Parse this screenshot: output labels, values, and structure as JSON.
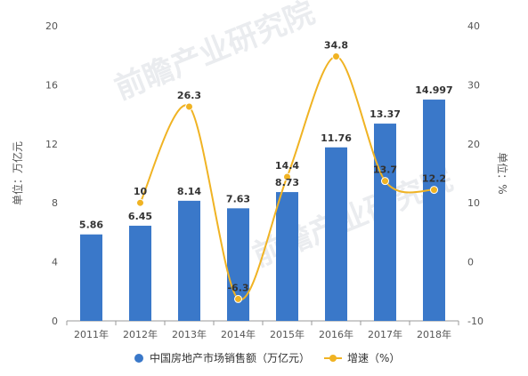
{
  "chart_data": {
    "type": "bar",
    "categories": [
      "2011年",
      "2012年",
      "2013年",
      "2014年",
      "2015年",
      "2016年",
      "2017年",
      "2018年"
    ],
    "series": [
      {
        "name": "中国房地产市场销售额（万亿元）",
        "type": "bar",
        "axis": "left",
        "values": [
          5.86,
          6.45,
          8.14,
          7.63,
          8.73,
          11.76,
          13.37,
          14.997
        ],
        "labels": [
          "5.86",
          "6.45",
          "8.14",
          "7.63",
          "8.73",
          "11.76",
          "13.37",
          "14.997"
        ],
        "color": "#3a78c9"
      },
      {
        "name": "增速（%）",
        "type": "line",
        "axis": "right",
        "values": [
          null,
          10,
          26.3,
          -6.3,
          14.4,
          34.8,
          13.7,
          12.2
        ],
        "labels": [
          "",
          "10",
          "26.3",
          "-6.3",
          "14.4",
          "34.8",
          "13.7",
          "12.2"
        ],
        "color": "#f0b323"
      }
    ],
    "ylabel": "单位：万亿元",
    "y2label": "单位：%",
    "ylim": [
      0,
      20
    ],
    "y2lim": [
      -10,
      40
    ],
    "yticks": [
      "0",
      "4",
      "8",
      "12",
      "16",
      "20"
    ],
    "y2ticks": [
      "-10",
      "0",
      "10",
      "20",
      "30",
      "40"
    ],
    "grid": false,
    "legend_position": "bottom"
  },
  "watermark": "前瞻产业研究院"
}
